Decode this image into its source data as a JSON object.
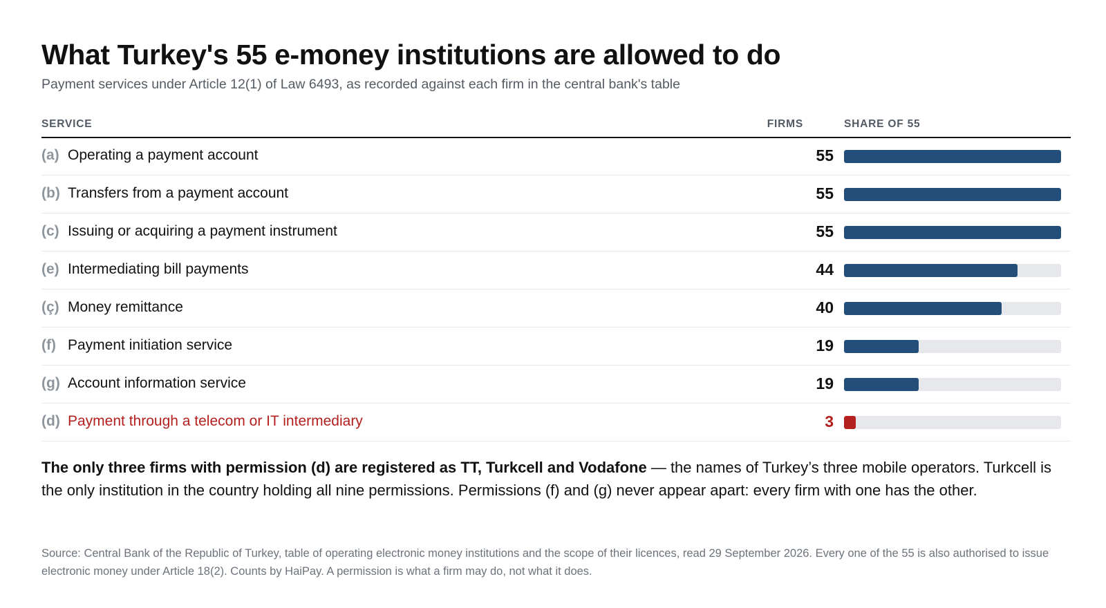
{
  "title": "What Turkey's 55 e-money institutions are allowed to do",
  "subtitle": "Payment services under Article 12(1) of Law 6493, as recorded against each firm in the central bank's table",
  "columns": {
    "service": "SERVICE",
    "firms": "FIRMS",
    "share": "SHARE OF 55"
  },
  "colors": {
    "bar": "#234e79",
    "highlight": "#b3201e",
    "track": "#e6e8ec"
  },
  "chart_data": {
    "type": "bar",
    "orientation": "horizontal",
    "title": "What Turkey's 55 e-money institutions are allowed to do",
    "total": 55,
    "xlim": [
      0,
      55
    ],
    "rows": [
      {
        "letter": "(a)",
        "label": "Operating a payment account",
        "value": 55,
        "highlight": false
      },
      {
        "letter": "(b)",
        "label": "Transfers from a payment account",
        "value": 55,
        "highlight": false
      },
      {
        "letter": "(c)",
        "label": "Issuing or acquiring a payment instrument",
        "value": 55,
        "highlight": false
      },
      {
        "letter": "(e)",
        "label": "Intermediating bill payments",
        "value": 44,
        "highlight": false
      },
      {
        "letter": "(ç)",
        "label": "Money remittance",
        "value": 40,
        "highlight": false
      },
      {
        "letter": "(f)",
        "label": "Payment initiation service",
        "value": 19,
        "highlight": false
      },
      {
        "letter": "(g)",
        "label": "Account information service",
        "value": 19,
        "highlight": false
      },
      {
        "letter": "(d)",
        "label": "Payment through a telecom or IT intermediary",
        "value": 3,
        "highlight": true
      }
    ]
  },
  "note": {
    "lead": "The only three firms with permission (d) are registered as TT, Turkcell and Vodafone",
    "rest": " — the names of Turkey’s three mobile operators. Turkcell is the only institution in the country holding all nine permissions. Permissions (f) and (g) never appear apart: every firm with one has the other."
  },
  "source": "Source: Central Bank of the Republic of Turkey, table of operating electronic money institutions and the scope of their licences, read 29 September 2026. Every one of the 55 is also authorised to issue electronic money under Article 18(2). Counts by HaiPay. A permission is what a firm may do, not what it does."
}
